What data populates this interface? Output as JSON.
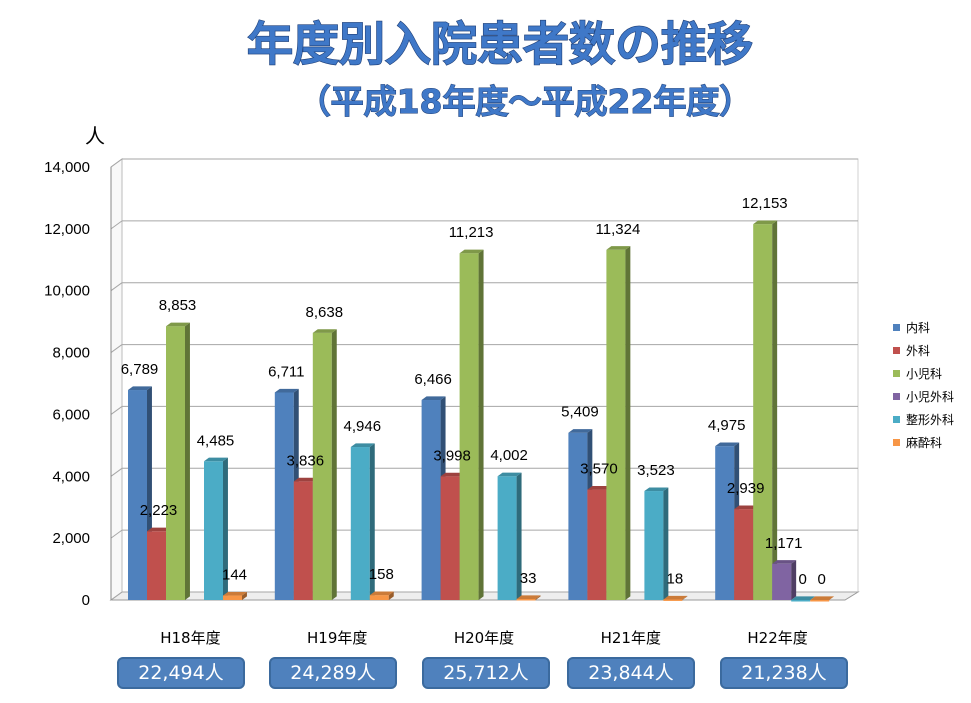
{
  "title": "年度別入院患者数の推移",
  "subtitle": "（平成18年度～平成22年度）",
  "totals": [
    "22,494人",
    "24,289人",
    "25,712人",
    "23,844人",
    "21,238人"
  ],
  "chart_data": {
    "type": "bar",
    "title": "年度別入院患者数の推移",
    "subtitle": "（平成18年度～平成22年度）",
    "ylabel": "人",
    "xlabel": "",
    "ylim": [
      0,
      14000
    ],
    "yticks": [
      "0",
      "2,000",
      "4,000",
      "6,000",
      "8,000",
      "10,000",
      "12,000",
      "14,000"
    ],
    "grid": true,
    "legend_position": "right",
    "categories": [
      "H18年度",
      "H19年度",
      "H20年度",
      "H21年度",
      "H22年度"
    ],
    "series": [
      {
        "name": "内科",
        "color": "#4f81bd",
        "values": [
          6789,
          6711,
          6466,
          5409,
          4975
        ],
        "labels": [
          "6,789",
          "6,711",
          "6,466",
          "5,409",
          "4,975"
        ]
      },
      {
        "name": "外科",
        "color": "#c0504d",
        "values": [
          2223,
          3836,
          3998,
          3570,
          2939
        ],
        "labels": [
          "2,223",
          "3,836",
          "3,998",
          "3,570",
          "2,939"
        ]
      },
      {
        "name": "小児科",
        "color": "#9bbb59",
        "values": [
          8853,
          8638,
          11213,
          11324,
          12153
        ],
        "labels": [
          "8,853",
          "8,638",
          "11,213",
          "11,324",
          "12,153"
        ]
      },
      {
        "name": "小児外科",
        "color": "#8064a2",
        "values": [
          null,
          null,
          null,
          null,
          1171
        ],
        "labels": [
          "",
          "",
          "",
          "",
          "1,171"
        ]
      },
      {
        "name": "整形外科",
        "color": "#4bacc6",
        "values": [
          4485,
          4946,
          4002,
          3523,
          0
        ],
        "labels": [
          "4,485",
          "4,946",
          "4,002",
          "3,523",
          "0"
        ]
      },
      {
        "name": "麻酔科",
        "color": "#f79646",
        "values": [
          144,
          158,
          33,
          18,
          0
        ],
        "labels": [
          "144",
          "158",
          "33",
          "18",
          "0"
        ]
      }
    ]
  }
}
